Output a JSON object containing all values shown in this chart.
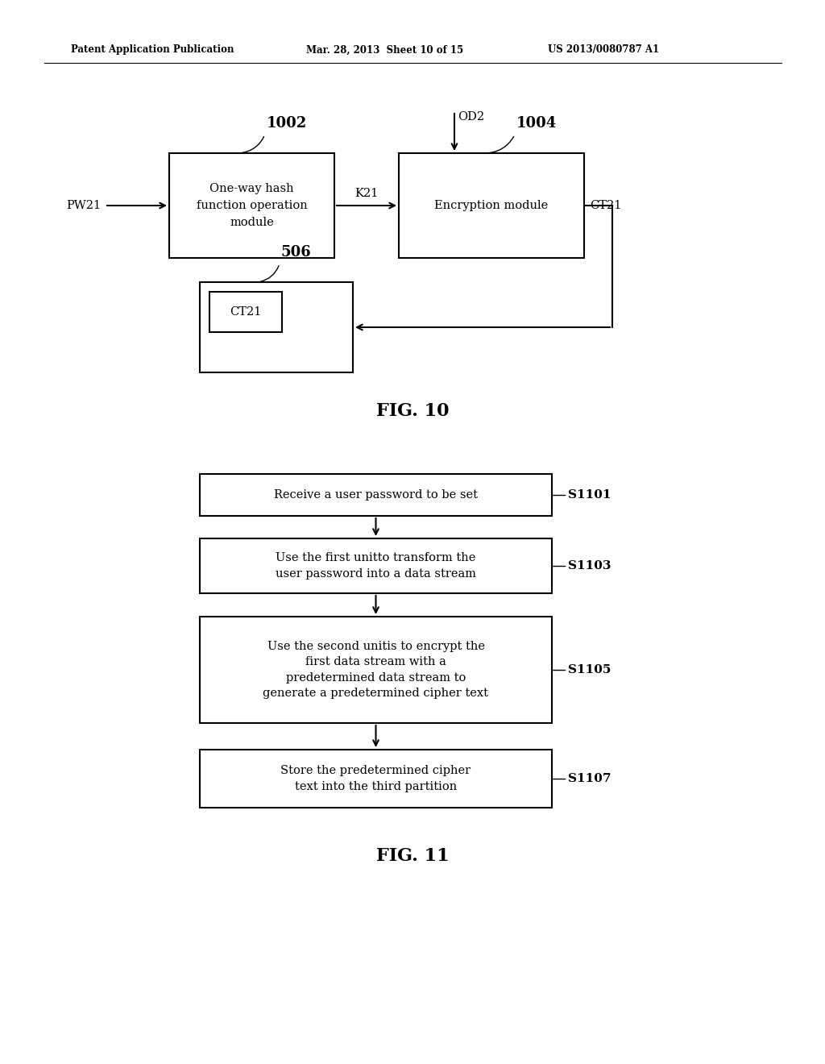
{
  "bg_color": "#ffffff",
  "header_left": "Patent Application Publication",
  "header_mid": "Mar. 28, 2013  Sheet 10 of 15",
  "header_right": "US 2013/0080787 A1",
  "fig10_label": "FIG. 10",
  "fig11_label": "FIG. 11",
  "box1002_text": "One-way hash\nfunction operation\nmodule",
  "box1002_label": "1002",
  "box1004_text": "Encryption module",
  "box1004_label": "1004",
  "box506_label": "506",
  "box506_inner": "CT21",
  "pw21_label": "PW21",
  "k21_label": "K21",
  "od2_label": "OD2",
  "ct21_label": "CT21",
  "flow_boxes": [
    {
      "text": "Receive a user password to be set",
      "label": "S1101"
    },
    {
      "text": "Use the first unitto transform the\nuser password into a data stream",
      "label": "S1103"
    },
    {
      "text": "Use the second unitis to encrypt the\nfirst data stream with a\npredetermined data stream to\ngenerate a predetermined cipher text",
      "label": "S1105"
    },
    {
      "text": "Store the predetermined cipher\ntext into the third partition",
      "label": "S1107"
    }
  ]
}
